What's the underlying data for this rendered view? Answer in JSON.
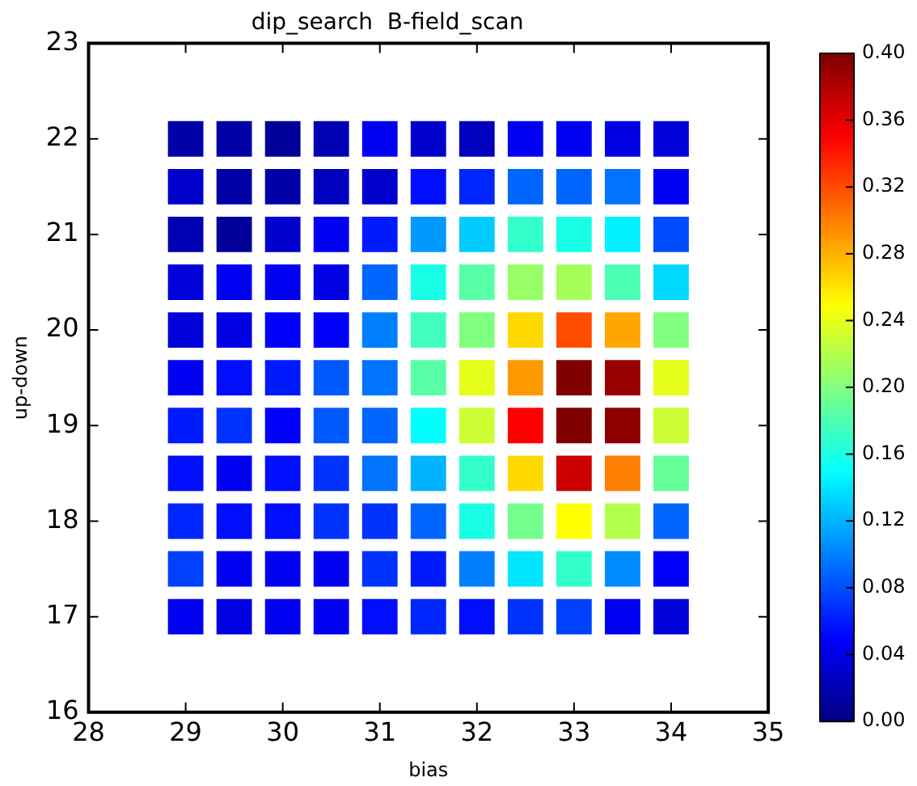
{
  "chart_data": {
    "type": "scatter",
    "title": "dip_search  B-field_scan",
    "xlabel": "bias",
    "ylabel": "up-down",
    "x": [
      29,
      29.5,
      30,
      30.5,
      31,
      31.5,
      32,
      32.5,
      33,
      33.5,
      34,
      29,
      29.5,
      30,
      30.5,
      31,
      31.5,
      32,
      32.5,
      33,
      33.5,
      34,
      29,
      29.5,
      30,
      30.5,
      31,
      31.5,
      32,
      32.5,
      33,
      33.5,
      34,
      29,
      29.5,
      30,
      30.5,
      31,
      31.5,
      32,
      32.5,
      33,
      33.5,
      34,
      29,
      29.5,
      30,
      30.5,
      31,
      31.5,
      32,
      32.5,
      33,
      33.5,
      34,
      29,
      29.5,
      30,
      30.5,
      31,
      31.5,
      32,
      32.5,
      33,
      33.5,
      34,
      29,
      29.5,
      30,
      30.5,
      31,
      31.5,
      32,
      32.5,
      33,
      33.5,
      34,
      29,
      29.5,
      30,
      30.5,
      31,
      31.5,
      32,
      32.5,
      33,
      33.5,
      34,
      29,
      29.5,
      30,
      30.5,
      31,
      31.5,
      32,
      32.5,
      33,
      33.5,
      34,
      29,
      29.5,
      30,
      30.5,
      31,
      31.5,
      32,
      32.5,
      33,
      33.5,
      34,
      29,
      29.5,
      30,
      30.5,
      31,
      31.5,
      32,
      32.5,
      33,
      33.5,
      34
    ],
    "values": [
      22,
      22,
      22,
      22,
      22,
      22,
      22,
      22,
      22,
      22,
      22,
      21.5,
      21.5,
      21.5,
      21.5,
      21.5,
      21.5,
      21.5,
      21.5,
      21.5,
      21.5,
      21.5,
      21,
      21,
      21,
      21,
      21,
      21,
      21,
      21,
      21,
      21,
      21,
      20.5,
      20.5,
      20.5,
      20.5,
      20.5,
      20.5,
      20.5,
      20.5,
      20.5,
      20.5,
      20.5,
      20,
      20,
      20,
      20,
      20,
      20,
      20,
      20,
      20,
      20,
      20,
      19.5,
      19.5,
      19.5,
      19.5,
      19.5,
      19.5,
      19.5,
      19.5,
      19.5,
      19.5,
      19.5,
      19,
      19,
      19,
      19,
      19,
      19,
      19,
      19,
      19,
      19,
      19,
      18.5,
      18.5,
      18.5,
      18.5,
      18.5,
      18.5,
      18.5,
      18.5,
      18.5,
      18.5,
      18.5,
      18,
      18,
      18,
      18,
      18,
      18,
      18,
      18,
      18,
      18,
      18,
      17.5,
      17.5,
      17.5,
      17.5,
      17.5,
      17.5,
      17.5,
      17.5,
      17.5,
      17.5,
      17.5,
      17,
      17,
      17,
      17,
      17,
      17,
      17,
      17,
      17,
      17,
      17
    ],
    "cvalues": [
      0.015,
      0.015,
      0.01,
      0.02,
      0.045,
      0.03,
      0.025,
      0.045,
      0.045,
      0.04,
      0.035,
      0.03,
      0.015,
      0.015,
      0.025,
      0.03,
      0.055,
      0.065,
      0.09,
      0.09,
      0.095,
      0.045,
      0.02,
      0.01,
      0.03,
      0.045,
      0.06,
      0.11,
      0.13,
      0.17,
      0.16,
      0.145,
      0.08,
      0.035,
      0.045,
      0.045,
      0.04,
      0.09,
      0.16,
      0.185,
      0.21,
      0.215,
      0.18,
      0.135,
      0.035,
      0.04,
      0.05,
      0.05,
      0.1,
      0.175,
      0.2,
      0.265,
      0.32,
      0.285,
      0.2,
      0.045,
      0.055,
      0.06,
      0.085,
      0.095,
      0.185,
      0.24,
      0.29,
      0.4,
      0.39,
      0.24,
      0.06,
      0.07,
      0.05,
      0.085,
      0.09,
      0.15,
      0.23,
      0.35,
      0.4,
      0.395,
      0.23,
      0.055,
      0.045,
      0.055,
      0.07,
      0.095,
      0.12,
      0.17,
      0.265,
      0.37,
      0.3,
      0.19,
      0.065,
      0.055,
      0.055,
      0.07,
      0.07,
      0.09,
      0.16,
      0.195,
      0.25,
      0.22,
      0.09,
      0.075,
      0.045,
      0.045,
      0.045,
      0.07,
      0.06,
      0.1,
      0.14,
      0.17,
      0.105,
      0.05,
      0.045,
      0.04,
      0.045,
      0.045,
      0.055,
      0.065,
      0.055,
      0.07,
      0.075,
      0.045,
      0.035
    ],
    "marker": "square",
    "xlim": [
      28,
      35
    ],
    "xticks": [
      28,
      29,
      30,
      31,
      32,
      33,
      34,
      35
    ],
    "ylim": [
      16,
      23
    ],
    "yticks": [
      16,
      17,
      18,
      19,
      20,
      21,
      22,
      23
    ],
    "clim": [
      0,
      0.4
    ],
    "cticks": [
      {
        "value": 0,
        "label": "0.00"
      },
      {
        "value": 0.04,
        "label": "0.04"
      },
      {
        "value": 0.08,
        "label": "0.08"
      },
      {
        "value": 0.12,
        "label": "0.12"
      },
      {
        "value": 0.16,
        "label": "0.16"
      },
      {
        "value": 0.2,
        "label": "0.20"
      },
      {
        "value": 0.24,
        "label": "0.24"
      },
      {
        "value": 0.28,
        "label": "0.28"
      },
      {
        "value": 0.32,
        "label": "0.32"
      },
      {
        "value": 0.36,
        "label": "0.36"
      },
      {
        "value": 0.4,
        "label": "0.40"
      }
    ]
  }
}
